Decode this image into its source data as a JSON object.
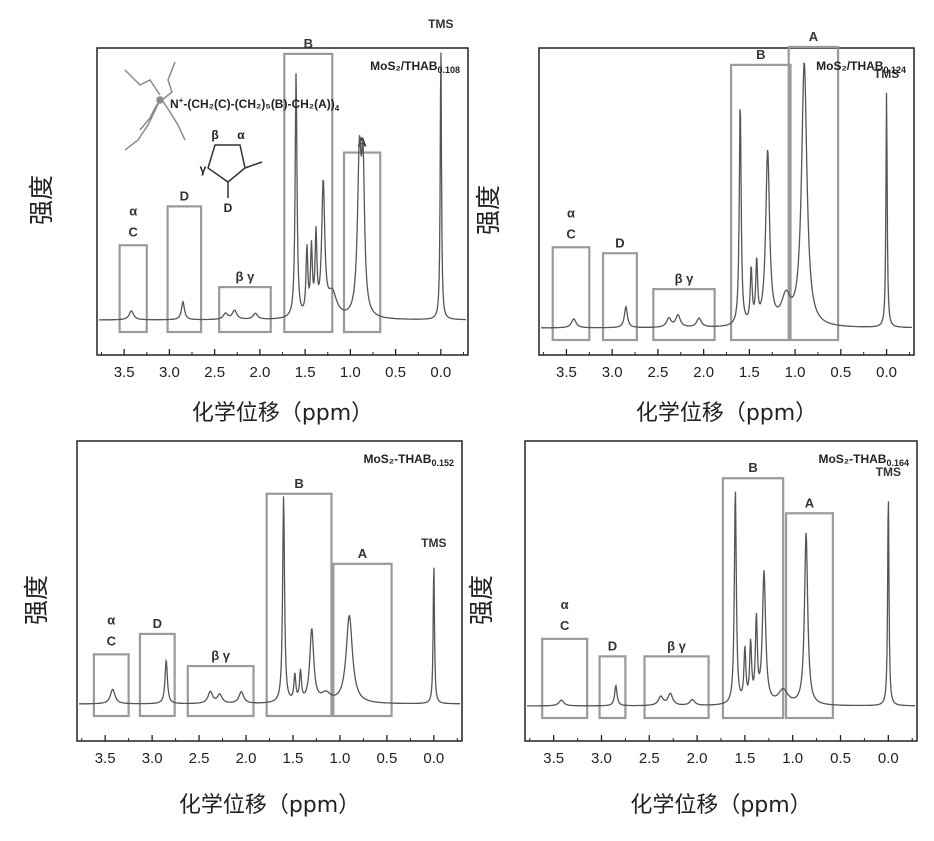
{
  "chart_data": [
    {
      "type": "line",
      "title": "MoS₂/THAB",
      "title_subscript": "0.108",
      "xlabel": "化学位移（ppm）",
      "ylabel": "强度",
      "xlim": [
        3.8,
        -0.3
      ],
      "xticks": [
        "3.5",
        "3.0",
        "2.5",
        "2.0",
        "1.5",
        "1.0",
        "0.5",
        "0.0"
      ],
      "reversed_x": true,
      "line_color": "#555555",
      "structure": {
        "formula_prefix": "N",
        "formula_sup": "+",
        "formula_main": "-(CH₂(C)-(CH₂)₅(B)-CH₂(A))",
        "formula_sub": "4",
        "ring_labels": [
          "β",
          "α",
          "γ",
          "D"
        ]
      },
      "peaks": [
        {
          "ppm": 3.42,
          "height": 0.03,
          "width": 0.03
        },
        {
          "ppm": 2.85,
          "height": 0.06,
          "width": 0.02
        },
        {
          "ppm": 2.38,
          "height": 0.02,
          "width": 0.03
        },
        {
          "ppm": 2.28,
          "height": 0.03,
          "width": 0.03
        },
        {
          "ppm": 2.05,
          "height": 0.02,
          "width": 0.03
        },
        {
          "ppm": 1.6,
          "height": 0.82,
          "width": 0.012
        },
        {
          "ppm": 1.48,
          "height": 0.22,
          "width": 0.012
        },
        {
          "ppm": 1.43,
          "height": 0.22,
          "width": 0.012
        },
        {
          "ppm": 1.38,
          "height": 0.26,
          "width": 0.012
        },
        {
          "ppm": 1.3,
          "height": 0.44,
          "width": 0.02
        },
        {
          "ppm": 1.2,
          "height": 0.08,
          "width": 0.06
        },
        {
          "ppm": 0.9,
          "height": 0.52,
          "width": 0.025
        },
        {
          "ppm": 0.86,
          "height": 0.45,
          "width": 0.02
        },
        {
          "ppm": 0.0,
          "height": 0.93,
          "width": 0.008
        }
      ],
      "regions": [
        {
          "label": "α",
          "label2": "C",
          "from": 3.55,
          "to": 3.25,
          "top": 0.25
        },
        {
          "label": "D",
          "from": 3.02,
          "to": 2.65,
          "top": 0.38
        },
        {
          "label": "β γ",
          "from": 2.45,
          "to": 1.88,
          "top": 0.11
        },
        {
          "label": "B",
          "from": 1.73,
          "to": 1.2,
          "top": 0.89
        },
        {
          "label": "A",
          "from": 1.07,
          "to": 0.67,
          "top": 0.56
        }
      ],
      "peak_labels": [
        {
          "text": "TMS",
          "ppm": 0.0
        }
      ]
    },
    {
      "type": "line",
      "title": "MoS₂/THAB",
      "title_subscript": "0.124",
      "xlabel": "化学位移（ppm）",
      "ylabel": "强度",
      "xlim": [
        3.8,
        -0.3
      ],
      "xticks": [
        "3.5",
        "3.0",
        "2.5",
        "2.0",
        "1.5",
        "1.0",
        "0.5",
        "0.0"
      ],
      "reversed_x": true,
      "line_color": "#555555",
      "peaks": [
        {
          "ppm": 3.42,
          "height": 0.03,
          "width": 0.03
        },
        {
          "ppm": 2.85,
          "height": 0.07,
          "width": 0.02
        },
        {
          "ppm": 2.38,
          "height": 0.03,
          "width": 0.03
        },
        {
          "ppm": 2.28,
          "height": 0.04,
          "width": 0.03
        },
        {
          "ppm": 2.05,
          "height": 0.03,
          "width": 0.03
        },
        {
          "ppm": 1.6,
          "height": 0.75,
          "width": 0.012
        },
        {
          "ppm": 1.48,
          "height": 0.18,
          "width": 0.012
        },
        {
          "ppm": 1.42,
          "height": 0.2,
          "width": 0.012
        },
        {
          "ppm": 1.3,
          "height": 0.58,
          "width": 0.025
        },
        {
          "ppm": 1.1,
          "height": 0.09,
          "width": 0.06
        },
        {
          "ppm": 0.9,
          "height": 0.88,
          "width": 0.035
        },
        {
          "ppm": 0.0,
          "height": 0.79,
          "width": 0.008
        }
      ],
      "regions": [
        {
          "label": "α",
          "label2": "C",
          "from": 3.65,
          "to": 3.25,
          "top": 0.27
        },
        {
          "label": "D",
          "from": 3.1,
          "to": 2.73,
          "top": 0.25
        },
        {
          "label": "β γ",
          "from": 2.55,
          "to": 1.88,
          "top": 0.13
        },
        {
          "label": "B",
          "from": 1.7,
          "to": 1.05,
          "top": 0.88
        },
        {
          "label": "A",
          "from": 1.07,
          "to": 0.53,
          "top": 0.94
        }
      ],
      "peak_labels": [
        {
          "text": "TMS",
          "ppm": 0.0
        }
      ]
    },
    {
      "type": "line",
      "title": "MoS₂-THAB",
      "title_subscript": "0.152",
      "xlabel": "化学位移（ppm）",
      "ylabel": "强度",
      "xlim": [
        3.8,
        -0.3
      ],
      "xticks": [
        "3.5",
        "3.0",
        "2.5",
        "2.0",
        "1.5",
        "1.0",
        "0.5",
        "0.0"
      ],
      "reversed_x": true,
      "line_color": "#555555",
      "peaks": [
        {
          "ppm": 3.42,
          "height": 0.05,
          "width": 0.03
        },
        {
          "ppm": 2.85,
          "height": 0.15,
          "width": 0.015
        },
        {
          "ppm": 2.38,
          "height": 0.04,
          "width": 0.03
        },
        {
          "ppm": 2.28,
          "height": 0.03,
          "width": 0.03
        },
        {
          "ppm": 2.05,
          "height": 0.04,
          "width": 0.03
        },
        {
          "ppm": 1.6,
          "height": 0.71,
          "width": 0.012
        },
        {
          "ppm": 1.48,
          "height": 0.09,
          "width": 0.012
        },
        {
          "ppm": 1.42,
          "height": 0.1,
          "width": 0.012
        },
        {
          "ppm": 1.3,
          "height": 0.25,
          "width": 0.025
        },
        {
          "ppm": 1.15,
          "height": 0.03,
          "width": 0.06
        },
        {
          "ppm": 0.9,
          "height": 0.3,
          "width": 0.04
        },
        {
          "ppm": 0.0,
          "height": 0.49,
          "width": 0.008
        }
      ],
      "regions": [
        {
          "label": "α",
          "label2": "C",
          "from": 3.62,
          "to": 3.25,
          "top": 0.17
        },
        {
          "label": "D",
          "from": 3.13,
          "to": 2.76,
          "top": 0.24
        },
        {
          "label": "β γ",
          "from": 2.62,
          "to": 1.92,
          "top": 0.13
        },
        {
          "label": "B",
          "from": 1.78,
          "to": 1.09,
          "top": 0.72
        },
        {
          "label": "A",
          "from": 1.07,
          "to": 0.45,
          "top": 0.48
        }
      ],
      "peak_labels": [
        {
          "text": "TMS",
          "ppm": 0.0
        }
      ]
    },
    {
      "type": "line",
      "title": "MoS₂-THAB",
      "title_subscript": "0.164",
      "xlabel": "化学位移（ppm）",
      "ylabel": "强度",
      "xlim": [
        3.8,
        -0.3
      ],
      "xticks": [
        "3.5",
        "3.0",
        "2.5",
        "2.0",
        "1.5",
        "1.0",
        "0.5",
        "0.0"
      ],
      "reversed_x": true,
      "line_color": "#555555",
      "peaks": [
        {
          "ppm": 3.42,
          "height": 0.02,
          "width": 0.03
        },
        {
          "ppm": 2.85,
          "height": 0.07,
          "width": 0.015
        },
        {
          "ppm": 2.38,
          "height": 0.03,
          "width": 0.03
        },
        {
          "ppm": 2.28,
          "height": 0.04,
          "width": 0.03
        },
        {
          "ppm": 2.05,
          "height": 0.02,
          "width": 0.03
        },
        {
          "ppm": 1.6,
          "height": 0.74,
          "width": 0.012
        },
        {
          "ppm": 1.5,
          "height": 0.18,
          "width": 0.012
        },
        {
          "ppm": 1.44,
          "height": 0.2,
          "width": 0.012
        },
        {
          "ppm": 1.38,
          "height": 0.28,
          "width": 0.012
        },
        {
          "ppm": 1.3,
          "height": 0.45,
          "width": 0.02
        },
        {
          "ppm": 1.1,
          "height": 0.05,
          "width": 0.06
        },
        {
          "ppm": 0.86,
          "height": 0.59,
          "width": 0.02
        },
        {
          "ppm": 0.0,
          "height": 0.74,
          "width": 0.008
        }
      ],
      "regions": [
        {
          "label": "α",
          "label2": "C",
          "from": 3.62,
          "to": 3.15,
          "top": 0.23
        },
        {
          "label": "D",
          "from": 3.02,
          "to": 2.75,
          "top": 0.17
        },
        {
          "label": "β γ",
          "from": 2.55,
          "to": 1.88,
          "top": 0.17
        },
        {
          "label": "B",
          "from": 1.73,
          "to": 1.1,
          "top": 0.78
        },
        {
          "label": "A",
          "from": 1.07,
          "to": 0.58,
          "top": 0.66
        }
      ],
      "peak_labels": [
        {
          "text": "TMS",
          "ppm": 0.0
        }
      ]
    }
  ]
}
